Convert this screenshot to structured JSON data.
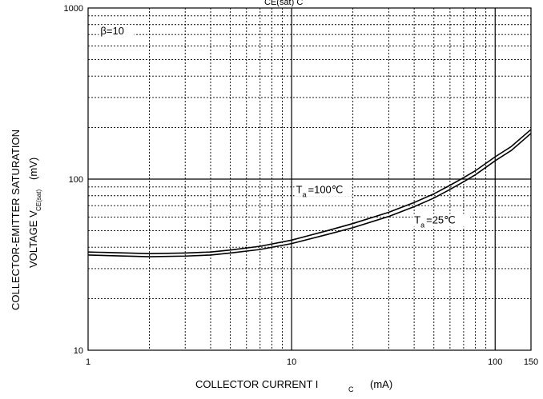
{
  "chart_data": {
    "type": "line",
    "title": "CE(sat)            C",
    "xlabel": "COLLECTOR CURRENT   I",
    "xlabel_sub": "C",
    "xlabel_unit": "(mA)",
    "ylabel_line1": "COLLECTOR-EMITTER SATURATION",
    "ylabel_line2": "VOLTAGE   V",
    "ylabel_sub": "CE(sat)",
    "ylabel_unit": "(mV)",
    "x_scale": "log",
    "y_scale": "log",
    "xlim": [
      1,
      150
    ],
    "ylim": [
      10,
      1000
    ],
    "grid": true,
    "x_ticks": [
      {
        "value": 1,
        "label": "1"
      },
      {
        "value": 10,
        "label": "10"
      },
      {
        "value": 100,
        "label": "100"
      },
      {
        "value": 150,
        "label": "150"
      }
    ],
    "y_ticks": [
      {
        "value": 10,
        "label": "10"
      },
      {
        "value": 100,
        "label": "100"
      },
      {
        "value": 1000,
        "label": "1000"
      }
    ],
    "annotations": [
      {
        "text": "β=10",
        "x": 1.15,
        "y": 700
      },
      {
        "text": "T",
        "sub": "a",
        "rest": "=100℃",
        "x": 10.5,
        "y": 83
      },
      {
        "text": "T",
        "sub": "a",
        "rest": "=25℃",
        "x": 40,
        "y": 55
      }
    ],
    "series": [
      {
        "x": [
          1,
          2,
          3,
          4,
          5,
          7,
          10,
          15,
          20,
          30,
          40,
          50,
          60,
          70,
          80,
          100,
          120,
          150
        ],
        "y": [
          37.5,
          36.7,
          37,
          37.5,
          38.5,
          40.5,
          44,
          50,
          55,
          64,
          73,
          82,
          92,
          102,
          112,
          135,
          155,
          195
        ]
      },
      {
        "x": [
          1,
          2,
          3,
          4,
          5,
          7,
          10,
          15,
          20,
          30,
          40,
          50,
          60,
          70,
          80,
          100,
          120,
          150
        ],
        "y": [
          36,
          35.2,
          35.5,
          36,
          37,
          38.8,
          42,
          47.5,
          52,
          60.5,
          69,
          77.5,
          87,
          96.5,
          106,
          128,
          147,
          185
        ]
      }
    ]
  }
}
